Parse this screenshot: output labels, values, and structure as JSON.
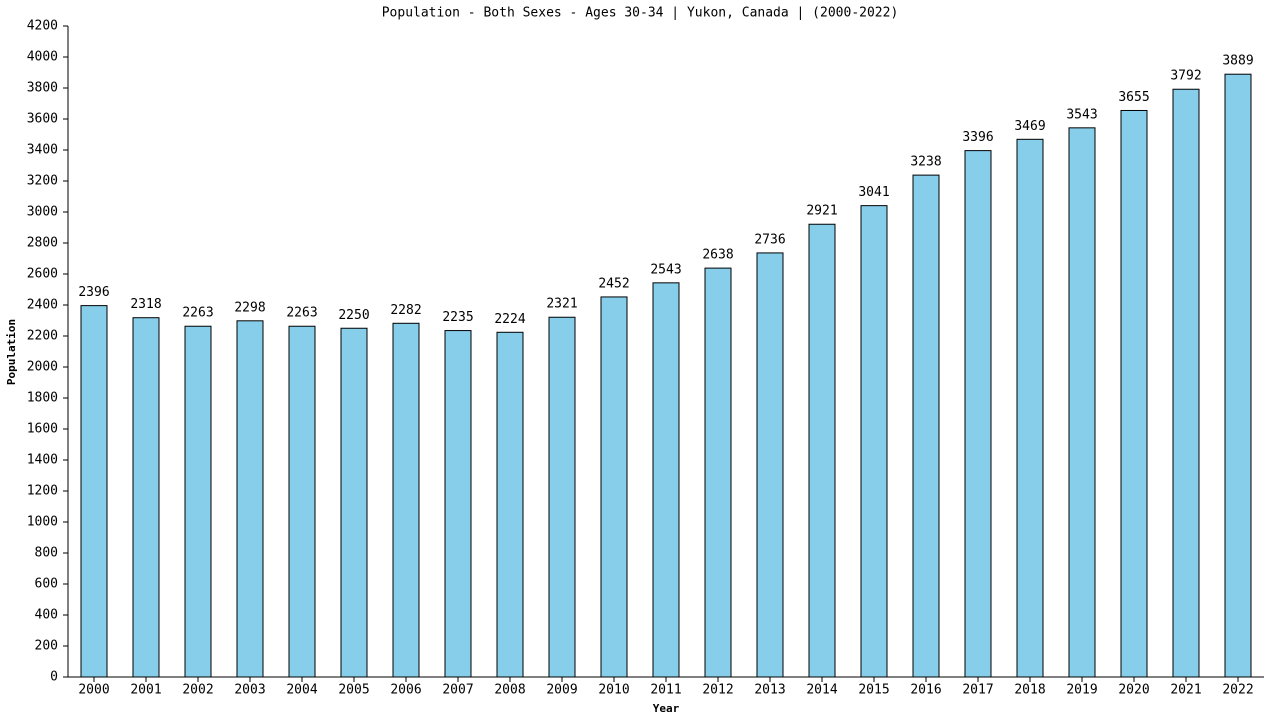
{
  "chart_data": {
    "type": "bar",
    "title": "Population - Both Sexes - Ages 30-34 | Yukon, Canada |  (2000-2022)",
    "x_label": "Year",
    "y_label": "Population",
    "categories": [
      "2000",
      "2001",
      "2002",
      "2003",
      "2004",
      "2005",
      "2006",
      "2007",
      "2008",
      "2009",
      "2010",
      "2011",
      "2012",
      "2013",
      "2014",
      "2015",
      "2016",
      "2017",
      "2018",
      "2019",
      "2020",
      "2021",
      "2022"
    ],
    "values": [
      2396,
      2318,
      2263,
      2298,
      2263,
      2250,
      2282,
      2235,
      2224,
      2321,
      2452,
      2543,
      2638,
      2736,
      2921,
      3041,
      3238,
      3396,
      3469,
      3543,
      3655,
      3792,
      3889
    ],
    "color": "#87ceeb",
    "ylim": [
      0,
      4200
    ],
    "yticks": [
      0,
      200,
      400,
      600,
      800,
      1000,
      1200,
      1400,
      1600,
      1800,
      2000,
      2200,
      2400,
      2600,
      2800,
      3000,
      3200,
      3400,
      3600,
      3800,
      4000,
      4200
    ],
    "grid": false
  }
}
